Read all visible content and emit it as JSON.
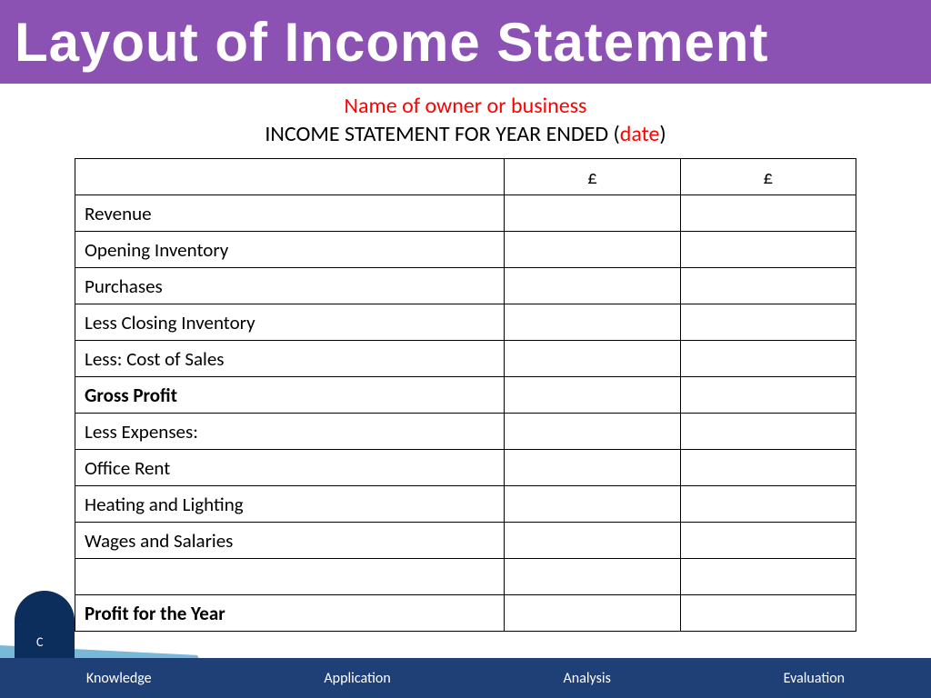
{
  "header": {
    "title": "Layout of Income Statement",
    "bg_color": "#8c52b3",
    "title_color": "#ffffff",
    "title_fontsize": 60
  },
  "subtitle": {
    "line1": "Name of owner or business",
    "line1_color": "#ff0000",
    "line2_prefix": "INCOME STATEMENT FOR YEAR ENDED  (",
    "line2_date": "date",
    "line2_suffix": ")",
    "line2_color_main": "#000000",
    "line2_color_date": "#ff0000",
    "fontsize": 24
  },
  "table": {
    "type": "table",
    "border_color": "#000000",
    "background_color": "#ffffff",
    "fontsize": 21,
    "columns": [
      {
        "label": "",
        "width_pct": 55,
        "align": "left"
      },
      {
        "label": "£",
        "width_pct": 22.5,
        "align": "center"
      },
      {
        "label": "£",
        "width_pct": 22.5,
        "align": "center"
      }
    ],
    "rows": [
      {
        "item": "Revenue",
        "col1": "",
        "col2": "",
        "bold": false
      },
      {
        "item": "Opening Inventory",
        "col1": "",
        "col2": "",
        "bold": false
      },
      {
        "item": "Purchases",
        "col1": "",
        "col2": "",
        "bold": false
      },
      {
        "item": "Less Closing Inventory",
        "col1": "",
        "col2": "",
        "bold": false
      },
      {
        "item": "Less: Cost of Sales",
        "col1": "",
        "col2": "",
        "bold": false
      },
      {
        "item": "Gross Profit",
        "col1": "",
        "col2": "",
        "bold": true
      },
      {
        "item": "Less Expenses:",
        "col1": "",
        "col2": "",
        "bold": false
      },
      {
        "item": "Office Rent",
        "col1": "",
        "col2": "",
        "bold": false
      },
      {
        "item": "Heating and Lighting",
        "col1": "",
        "col2": "",
        "bold": false
      },
      {
        "item": "Wages and Salaries",
        "col1": "",
        "col2": "",
        "bold": false
      },
      {
        "item": "",
        "col1": "",
        "col2": "",
        "bold": false
      },
      {
        "item": "Profit for the Year",
        "col1": "",
        "col2": "",
        "bold": true
      }
    ]
  },
  "footer": {
    "bg_color": "#1f3f77",
    "text_color": "#ffffff",
    "fontsize": 16,
    "items": [
      "Knowledge",
      "Application",
      "Analysis",
      "Evaluation"
    ]
  },
  "decoration": {
    "book_letter": "C",
    "book_color": "#0c2e5c",
    "swoosh_color": "#7ab8d8"
  }
}
